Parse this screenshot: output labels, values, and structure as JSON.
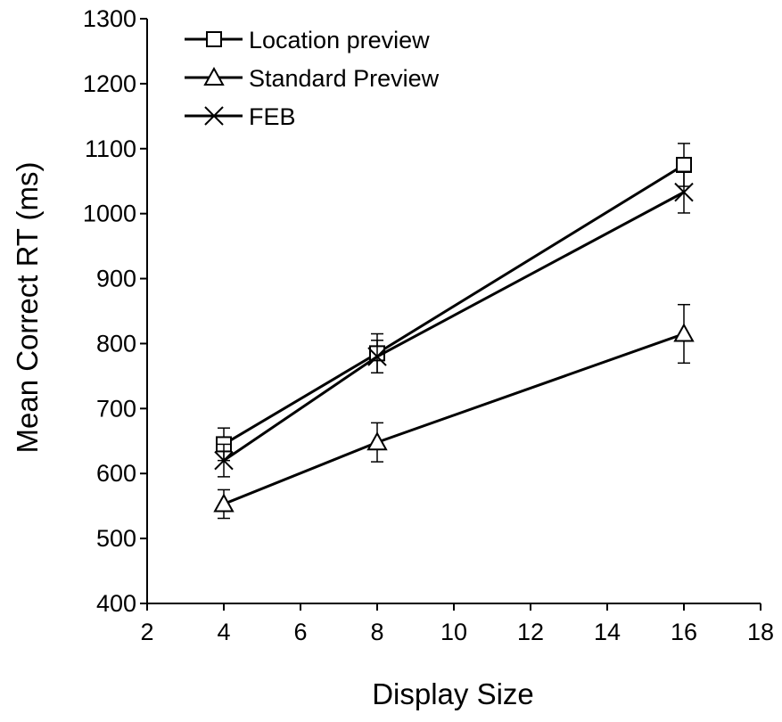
{
  "chart_data": {
    "type": "line",
    "title": "",
    "xlabel": "Display Size",
    "ylabel": "Mean Correct RT (ms)",
    "xlim": [
      2,
      18
    ],
    "ylim": [
      400,
      1300
    ],
    "x_ticks": [
      "2",
      "4",
      "6",
      "8",
      "10",
      "12",
      "14",
      "16",
      "18"
    ],
    "y_ticks": [
      "400",
      "500",
      "600",
      "700",
      "800",
      "900",
      "1000",
      "1100",
      "1200",
      "1300"
    ],
    "grid": false,
    "legend_position": "top-left",
    "series": [
      {
        "name": "Location preview",
        "marker": "square",
        "x": [
          4,
          8,
          16
        ],
        "y": [
          645,
          785,
          1075
        ],
        "err": [
          25,
          30,
          33
        ]
      },
      {
        "name": "Standard Preview",
        "marker": "triangle",
        "x": [
          4,
          8,
          16
        ],
        "y": [
          553,
          648,
          815
        ],
        "err": [
          22,
          30,
          45
        ]
      },
      {
        "name": "FEB",
        "marker": "x",
        "x": [
          4,
          8,
          16
        ],
        "y": [
          620,
          780,
          1033
        ],
        "err": [
          25,
          25,
          32
        ]
      }
    ],
    "line_color": "#000000"
  }
}
